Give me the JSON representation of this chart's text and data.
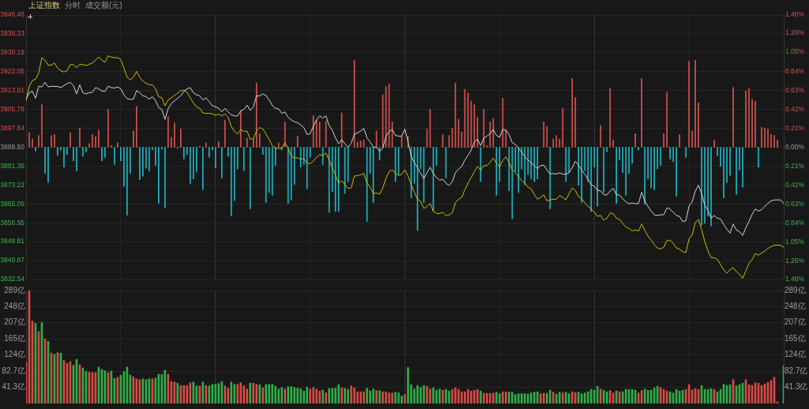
{
  "chart_data": [
    {
      "type": "line",
      "title": "上证指数",
      "subtitle": "分时",
      "annotations": [
        "成交额(元)"
      ],
      "categories": [
        null,
        null,
        null,
        null,
        null,
        null,
        null,
        null,
        null,
        null,
        null,
        null,
        null,
        null,
        null,
        null,
        null,
        null,
        null,
        null,
        null,
        null,
        null,
        null,
        null,
        null,
        null,
        null,
        null,
        null,
        null,
        null,
        null,
        null,
        null,
        null,
        null,
        null,
        null,
        null,
        null,
        null,
        null,
        null,
        null,
        null,
        null,
        null,
        null,
        null,
        null,
        null,
        null,
        null,
        null,
        null,
        null,
        null,
        null,
        null,
        null,
        null,
        null,
        null,
        null,
        null,
        null,
        null,
        null,
        null,
        null,
        null,
        null,
        null,
        null,
        null,
        null,
        null,
        null,
        null,
        null,
        null,
        null,
        null,
        null,
        null,
        null,
        null,
        null,
        null,
        null,
        null,
        null,
        null,
        null,
        null,
        null,
        null,
        null,
        null,
        null,
        null,
        null,
        null,
        null,
        null,
        null,
        null,
        null,
        null,
        null,
        null,
        null,
        null,
        null,
        null,
        null,
        null,
        null,
        null,
        null,
        null,
        null,
        null,
        null,
        null,
        null,
        null,
        null,
        null,
        null,
        null,
        null,
        null,
        null,
        null,
        null,
        null,
        null,
        null,
        null,
        null,
        null,
        null,
        null,
        null,
        null,
        null,
        null,
        null,
        null,
        null,
        null,
        null,
        null,
        null,
        null,
        null,
        null,
        null,
        null,
        null,
        null,
        null,
        null,
        null,
        null,
        null,
        null,
        null,
        null,
        null,
        null,
        null,
        null,
        null,
        null,
        null,
        null,
        null,
        null,
        null,
        null,
        null,
        null,
        null,
        null,
        null,
        null,
        null,
        null,
        null,
        null,
        null,
        null,
        null,
        null,
        null,
        null,
        null,
        null,
        null,
        null,
        null,
        null,
        null,
        null,
        null,
        null,
        null,
        null,
        null,
        null,
        null,
        null,
        null,
        null,
        null,
        null,
        null,
        null,
        null,
        null,
        null,
        null,
        null,
        null,
        null,
        null,
        null,
        null,
        null,
        null,
        null,
        null,
        null,
        null,
        null,
        null,
        null,
        null
      ],
      "series": [
        {
          "type": "bar",
          "axis": "y2",
          "values": [
            null,
            0.16,
            0.09,
            -0.04,
            0.13,
            0.47,
            -0.29,
            -0.39,
            0.13,
            0.14,
            -0.09,
            -0.03,
            -0.22,
            -0.08,
            0.16,
            -0.15,
            -0.26,
            0.21,
            -0.1,
            -0.05,
            0.04,
            0.14,
            0.12,
            0.19,
            -0.15,
            -0.11,
            0.42,
            0.02,
            -0.19,
            0.05,
            -0.15,
            -0.43,
            -0.75,
            -0.29,
            0.18,
            0.45,
            -0.36,
            -0.32,
            -0.23,
            -0.26,
            -0.03,
            -0.2,
            -0.62,
            -0.02,
            -0.67,
            0.34,
            0.11,
            0.27,
            -0.01,
            0.2,
            -0.13,
            -0.08,
            -0.4,
            -0.35,
            -0.27,
            0.01,
            -0.47,
            0.05,
            -0.11,
            -0.03,
            -0.23,
            0.06,
            -0.34,
            0.3,
            -0.1,
            -0.76,
            -0.59,
            -0.24,
            0.4,
            -0.26,
            0.1,
            -0.68,
            0.09,
            0.71,
            0.15,
            -0.08,
            -0.61,
            -0.5,
            -0.53,
            -0.2,
            0.05,
            -0.03,
            0.28,
            -0.62,
            -0.58,
            -0.41,
            0.12,
            -0.22,
            -0.19,
            -0.46,
            -0.11,
            0.35,
            0.3,
            0.28,
            -0.19,
            0.29,
            -0.72,
            -0.49,
            -0.71,
            -0.71,
            0.38,
            -0.51,
            -0.38,
            null,
            0.96,
            0.06,
            0.07,
            0.08,
            -0.82,
            -0.29,
            -0.61,
            0.18,
            -0.14,
            0.58,
            0.67,
            0.7,
            0.28,
            -0.38,
            -0.3,
            0.12,
            null,
            0.12,
            -0.56,
            -0.4,
            -0.92,
            -0.24,
            -0.61,
            0.2,
            0.42,
            -0.71,
            -0.2,
            null,
            0.14,
            -0.34,
            0.13,
            0.21,
            0.71,
            0.31,
            0.17,
            0.64,
            0.6,
            0.51,
            0.47,
            0.33,
            -0.38,
            0.42,
            0.02,
            0.28,
            0.32,
            -0.53,
            -0.38,
            0.54,
            0.19,
            -0.48,
            -0.79,
            -0.27,
            -0.5,
            -0.24,
            -0.41,
            -0.3,
            -0.35,
            -0.38,
            -0.35,
            null,
            0.28,
            0.23,
            -0.68,
            0.09,
            0.13,
            0.09,
            0.43,
            -0.38,
            -0.28,
            0.76,
            0.55,
            -0.42,
            -0.61,
            -0.26,
            -0.38,
            -0.71,
            -0.22,
            -0.65,
            0.24,
            -0.5,
            -0.05,
            0.65,
            0.08,
            -0.62,
            -0.14,
            -0.28,
            -0.53,
            -0.29,
            -0.18,
            0.15,
            -0.03,
            0.76,
            -0.63,
            -0.35,
            -0.45,
            -0.47,
            -0.24,
            -0.2,
            0.15,
            0.61,
            -0.13,
            -0.16,
            -0.54,
            0.14,
            null,
            -0.11,
            0.95,
            0.18,
            0.96,
            0.49,
            -0.86,
            -0.84,
            -0.76,
            -0.87,
            0.08,
            -0.09,
            -0.21,
            -0.56,
            -0.39,
            -0.31,
            0.66,
            -0.52,
            -0.25,
            -0.44,
            0.62,
            0.65,
            0.53,
            0.51,
            -0.22,
            0.22,
            0.21,
            0.2,
            0.14,
            0.13,
            0.08,
            null,
            null
          ],
          "colors": [
            null,
            "#d9534f",
            "#d9534f",
            "#1fb6c6",
            "#d9534f",
            "#d9534f",
            "#1fb6c6",
            "#1fb6c6",
            "#d9534f",
            "#d9534f",
            "#1fb6c6",
            "#1fb6c6",
            "#1fb6c6",
            "#1fb6c6",
            "#d9534f",
            "#1fb6c6",
            "#1fb6c6",
            "#d9534f",
            "#1fb6c6",
            "#1fb6c6",
            "#d9534f",
            "#d9534f",
            "#d9534f",
            "#d9534f",
            "#1fb6c6",
            "#1fb6c6",
            "#d9534f",
            "#d9534f",
            "#1fb6c6",
            "#d9534f",
            "#1fb6c6",
            "#1fb6c6",
            "#1fb6c6",
            "#1fb6c6",
            "#d9534f",
            "#d9534f",
            "#1fb6c6",
            "#1fb6c6",
            "#1fb6c6",
            "#1fb6c6",
            "#1fb6c6",
            "#1fb6c6",
            "#1fb6c6",
            "#1fb6c6",
            "#1fb6c6",
            "#d9534f",
            "#d9534f",
            "#d9534f",
            "#1fb6c6",
            "#d9534f",
            "#1fb6c6",
            "#1fb6c6",
            "#1fb6c6",
            "#1fb6c6",
            "#1fb6c6",
            "#d9534f",
            "#1fb6c6",
            "#d9534f",
            "#1fb6c6",
            "#1fb6c6",
            "#1fb6c6",
            "#d9534f",
            "#1fb6c6",
            "#d9534f",
            "#1fb6c6",
            "#1fb6c6",
            "#1fb6c6",
            "#1fb6c6",
            "#d9534f",
            "#1fb6c6",
            "#d9534f",
            "#1fb6c6",
            "#d9534f",
            "#d9534f",
            "#d9534f",
            "#1fb6c6",
            "#1fb6c6",
            "#1fb6c6",
            "#1fb6c6",
            "#1fb6c6",
            "#d9534f",
            "#1fb6c6",
            "#d9534f",
            "#1fb6c6",
            "#1fb6c6",
            "#1fb6c6",
            "#d9534f",
            "#1fb6c6",
            "#1fb6c6",
            "#1fb6c6",
            "#1fb6c6",
            "#d9534f",
            "#d9534f",
            "#d9534f",
            "#1fb6c6",
            "#d9534f",
            "#1fb6c6",
            "#1fb6c6",
            "#1fb6c6",
            "#1fb6c6",
            "#d9534f",
            "#1fb6c6",
            "#1fb6c6",
            null,
            "#d9534f",
            "#d9534f",
            "#d9534f",
            "#d9534f",
            "#1fb6c6",
            "#1fb6c6",
            "#1fb6c6",
            "#d9534f",
            "#1fb6c6",
            "#d9534f",
            "#d9534f",
            "#d9534f",
            "#d9534f",
            "#1fb6c6",
            "#1fb6c6",
            "#d9534f",
            null,
            "#d9534f",
            "#1fb6c6",
            "#1fb6c6",
            "#1fb6c6",
            "#1fb6c6",
            "#1fb6c6",
            "#d9534f",
            "#d9534f",
            "#1fb6c6",
            "#1fb6c6",
            null,
            "#d9534f",
            "#1fb6c6",
            "#d9534f",
            "#d9534f",
            "#d9534f",
            "#d9534f",
            "#d9534f",
            "#d9534f",
            "#d9534f",
            "#d9534f",
            "#d9534f",
            "#d9534f",
            "#1fb6c6",
            "#d9534f",
            "#d9534f",
            "#d9534f",
            "#d9534f",
            "#1fb6c6",
            "#1fb6c6",
            "#d9534f",
            "#d9534f",
            "#1fb6c6",
            "#1fb6c6",
            "#1fb6c6",
            "#1fb6c6",
            "#1fb6c6",
            "#1fb6c6",
            "#1fb6c6",
            "#1fb6c6",
            "#1fb6c6",
            "#1fb6c6",
            null,
            "#d9534f",
            "#d9534f",
            "#1fb6c6",
            "#d9534f",
            "#d9534f",
            "#d9534f",
            "#d9534f",
            "#1fb6c6",
            "#1fb6c6",
            "#d9534f",
            "#d9534f",
            "#1fb6c6",
            "#1fb6c6",
            "#1fb6c6",
            "#1fb6c6",
            "#1fb6c6",
            "#1fb6c6",
            "#1fb6c6",
            "#d9534f",
            "#1fb6c6",
            "#1fb6c6",
            "#d9534f",
            "#d9534f",
            "#1fb6c6",
            "#1fb6c6",
            "#1fb6c6",
            "#1fb6c6",
            "#1fb6c6",
            "#1fb6c6",
            "#d9534f",
            "#1fb6c6",
            "#d9534f",
            "#1fb6c6",
            "#1fb6c6",
            "#1fb6c6",
            "#1fb6c6",
            "#1fb6c6",
            "#1fb6c6",
            "#d9534f",
            "#d9534f",
            "#1fb6c6",
            "#1fb6c6",
            "#1fb6c6",
            "#d9534f",
            null,
            "#1fb6c6",
            "#d9534f",
            "#d9534f",
            "#d9534f",
            "#d9534f",
            "#1fb6c6",
            "#1fb6c6",
            "#1fb6c6",
            "#1fb6c6",
            "#d9534f",
            "#1fb6c6",
            "#1fb6c6",
            "#1fb6c6",
            "#1fb6c6",
            "#1fb6c6",
            "#d9534f",
            "#1fb6c6",
            "#1fb6c6",
            "#1fb6c6",
            "#d9534f",
            "#d9534f",
            "#d9534f",
            "#d9534f",
            "#1fb6c6",
            "#d9534f",
            "#d9534f",
            "#d9534f",
            "#d9534f",
            "#d9534f",
            "#d9534f",
            null,
            null
          ]
        },
        {
          "color": "#d4d4d4",
          "values": [
            3910.2,
            3913.0,
            3913.6,
            3910.6,
            3915.8,
            3915.5,
            3917.5,
            3915.5,
            3915.8,
            3915.7,
            3915.7,
            3915.2,
            3916.1,
            3916.9,
            3917.5,
            3916.1,
            3912.5,
            3916.4,
            3913.0,
            3912.5,
            3913.0,
            3913.2,
            3915.2,
            3914.7,
            3913.8,
            3913.6,
            3915.8,
            3915.2,
            3915.0,
            3915.5,
            3914.7,
            3912.1,
            3910.5,
            3910.1,
            3910.2,
            3913.9,
            3913.0,
            3911.7,
            3911.3,
            3910.2,
            3911.3,
            3909.7,
            3906.6,
            3905.8,
            3901.5,
            3906.1,
            3908.3,
            3909.5,
            3910.6,
            3911.7,
            3913.6,
            3914.7,
            3915.2,
            3913.0,
            3912.1,
            3911.7,
            3909.9,
            3910.8,
            3909.1,
            3907.4,
            3906.9,
            3906.3,
            3904.7,
            3906.3,
            3904.7,
            3903.5,
            3903.0,
            3903.0,
            3905.2,
            3905.8,
            3907.7,
            3905.4,
            3906.9,
            3911.7,
            3911.6,
            3912.5,
            3911.8,
            3910.0,
            3907.5,
            3906.3,
            3906.0,
            3904.1,
            3904.7,
            3902.4,
            3901.3,
            3900.5,
            3900.1,
            3899.1,
            3898.0,
            3895.0,
            3895.4,
            3898.5,
            3901.3,
            3903.0,
            3902.1,
            3903.0,
            3898.8,
            3896.9,
            3893.5,
            3891.0,
            3892.7,
            3891.0,
            3889.4,
            3891.3,
            3895.2,
            3895.7,
            3896.5,
            3897.6,
            3893.5,
            3891.8,
            3889.6,
            3889.4,
            3887.7,
            3889.1,
            3894.1,
            3896.3,
            3897.1,
            3894.6,
            3894.3,
            3894.3,
            3897.4,
            3891.8,
            3885.7,
            3882.9,
            3880.7,
            3878.2,
            3876.0,
            3878.5,
            3880.9,
            3878.2,
            3876.5,
            3875.3,
            3875.7,
            3874.0,
            3873.1,
            3874.6,
            3878.5,
            3880.1,
            3881.2,
            3884.0,
            3886.0,
            3888.3,
            3891.8,
            3893.0,
            3890.2,
            3893.5,
            3894.3,
            3895.4,
            3897.2,
            3894.6,
            3893.8,
            3897.2,
            3896.9,
            3895.0,
            3891.5,
            3890.7,
            3889.1,
            3887.4,
            3885.4,
            3884.0,
            3882.9,
            3881.4,
            3880.4,
            3881.6,
            3881.8,
            3879.8,
            3877.9,
            3878.2,
            3877.9,
            3878.5,
            3877.9,
            3877.9,
            3878.5,
            3880.7,
            3883.5,
            3881.8,
            3879.6,
            3877.9,
            3875.7,
            3873.4,
            3872.7,
            3870.9,
            3870.7,
            3869.0,
            3869.0,
            3870.7,
            3871.8,
            3869.0,
            3868.9,
            3867.3,
            3866.0,
            3865.1,
            3865.5,
            3865.1,
            3865.3,
            3870.1,
            3866.2,
            3864.0,
            3862.0,
            3860.4,
            3860.1,
            3860.4,
            3860.4,
            3863.4,
            3862.9,
            3861.5,
            3860.1,
            3859.7,
            3857.5,
            3857.8,
            3864.2,
            3866.0,
            3870.7,
            3873.1,
            3869.5,
            3864.5,
            3862.3,
            3858.9,
            3860.1,
            3858.9,
            3858.6,
            3856.2,
            3854.2,
            3852.5,
            3856.4,
            3853.9,
            3853.1,
            3851.5,
            3854.8,
            3857.5,
            3860.6,
            3862.9,
            3862.0,
            3862.6,
            3864.0,
            3865.3,
            3866.4,
            3866.8,
            3866.8,
            3866.8,
            3865.3
          ]
        },
        {
          "color": "#cdbd06",
          "values": [
            3909.7,
            3915.8,
            3918.3,
            3918.8,
            3921.4,
            3928.1,
            3927.0,
            3924.9,
            3924.9,
            3925.8,
            3923.6,
            3922.5,
            3921.9,
            3922.5,
            3925.1,
            3925.1,
            3923.8,
            3925.3,
            3925.1,
            3924.7,
            3925.3,
            3925.8,
            3927.0,
            3928.4,
            3927.0,
            3926.2,
            3928.9,
            3928.4,
            3928.1,
            3928.1,
            3927.3,
            3923.6,
            3919.7,
            3918.6,
            3919.7,
            3922.2,
            3919.7,
            3918.0,
            3917.1,
            3916.4,
            3916.4,
            3914.7,
            3911.3,
            3910.8,
            3907.4,
            3909.9,
            3910.8,
            3911.9,
            3912.8,
            3913.9,
            3914.1,
            3913.2,
            3910.8,
            3908.6,
            3906.9,
            3906.3,
            3904.3,
            3904.1,
            3904.1,
            3903.9,
            3903.3,
            3903.8,
            3903.0,
            3903.9,
            3902.4,
            3898.5,
            3896.3,
            3895.2,
            3897.1,
            3896.3,
            3896.5,
            3893.0,
            3893.2,
            3896.5,
            3898.0,
            3897.4,
            3895.2,
            3892.8,
            3890.2,
            3889.1,
            3889.0,
            3889.1,
            3891.5,
            3889.1,
            3885.7,
            3884.9,
            3884.9,
            3884.4,
            3884.6,
            3882.7,
            3882.4,
            3883.5,
            3885.2,
            3886.3,
            3886.0,
            3887.0,
            3884.0,
            3880.7,
            3877.6,
            3874.0,
            3875.1,
            3873.4,
            3871.8,
            3872.0,
            3877.1,
            3877.3,
            3877.6,
            3878.2,
            3874.0,
            3872.3,
            3869.5,
            3869.8,
            3869.3,
            3872.0,
            3876.2,
            3879.0,
            3879.8,
            3878.2,
            3877.3,
            3877.9,
            3879.8,
            3877.1,
            3873.4,
            3870.1,
            3867.1,
            3866.2,
            3863.1,
            3864.0,
            3865.3,
            3862.0,
            3861.0,
            3860.9,
            3861.5,
            3860.0,
            3860.4,
            3861.2,
            3865.6,
            3867.1,
            3867.9,
            3871.2,
            3874.0,
            3876.5,
            3879.0,
            3881.2,
            3879.6,
            3881.6,
            3881.6,
            3883.1,
            3884.8,
            3882.7,
            3881.0,
            3883.8,
            3885.4,
            3882.9,
            3879.8,
            3878.5,
            3876.8,
            3875.1,
            3874.0,
            3872.3,
            3871.6,
            3869.1,
            3867.1,
            3867.9,
            3869.0,
            3866.4,
            3866.8,
            3867.1,
            3867.1,
            3868.7,
            3867.9,
            3866.8,
            3869.5,
            3872.0,
            3870.9,
            3868.2,
            3867.3,
            3865.6,
            3864.0,
            3862.9,
            3861.5,
            3859.7,
            3860.1,
            3858.1,
            3858.9,
            3861.2,
            3860.9,
            3858.9,
            3858.4,
            3856.7,
            3855.1,
            3854.5,
            3853.4,
            3853.9,
            3853.4,
            3856.4,
            3853.7,
            3851.2,
            3849.5,
            3847.5,
            3846.1,
            3845.6,
            3846.4,
            3849.3,
            3849.5,
            3848.1,
            3846.1,
            3845.6,
            3844.5,
            3844.1,
            3850.0,
            3851.7,
            3857.1,
            3858.4,
            3853.9,
            3848.9,
            3844.8,
            3841.9,
            3841.9,
            3841.1,
            3838.9,
            3836.7,
            3835.2,
            3836.7,
            3837.6,
            3835.9,
            3834.8,
            3833.0,
            3836.3,
            3839.4,
            3841.1,
            3843.7,
            3843.0,
            3843.9,
            3844.8,
            3845.9,
            3846.7,
            3847.3,
            3847.3,
            3847.3,
            3846.4
          ]
        }
      ],
      "ylim": [
        3832.54,
        3946.46
      ],
      "yticks": [
        3832.54,
        3840.67,
        3848.81,
        3856.95,
        3865.09,
        3873.22,
        3881.36,
        {
          "value": 3889.5,
          "label": "3889.50"
        },
        3897.64,
        3905.78,
        3913.91,
        3922.05,
        3930.19,
        3938.33,
        3946.46
      ],
      "y2lim": [
        -1.46,
        1.46
      ],
      "y2ticks": [
        {
          "value": -1.46,
          "label": "1.46%"
        },
        {
          "value": -1.26,
          "label": "1.26%"
        },
        {
          "value": -1.05,
          "label": "1.05%"
        },
        {
          "value": -0.84,
          "label": "0.84%"
        },
        {
          "value": -0.63,
          "label": "0.63%"
        },
        {
          "value": -0.42,
          "label": "0.42%"
        },
        {
          "value": -0.21,
          "label": "0.21%"
        },
        {
          "value": 0,
          "label": "0.00%"
        },
        {
          "value": 0.21,
          "label": "0.21%"
        },
        {
          "value": 0.42,
          "label": "0.42%"
        },
        {
          "value": 0.63,
          "label": "0.63%"
        },
        {
          "value": 0.84,
          "label": "0.84%"
        },
        {
          "value": 1.05,
          "label": "1.05%"
        },
        {
          "value": 1.26,
          "label": "1.26%"
        },
        {
          "value": 1.46,
          "label": "1.46%"
        }
      ],
      "grid": true
    },
    {
      "type": "bar",
      "categories": [
        null,
        null,
        null,
        null,
        null,
        null,
        null,
        null,
        null,
        null,
        null,
        null,
        null,
        null,
        null,
        null,
        null,
        null,
        null,
        null,
        null,
        null,
        null,
        null,
        null,
        null,
        null,
        null,
        null,
        null,
        null,
        null,
        null,
        null,
        null,
        null,
        null,
        null,
        null,
        null,
        null,
        null,
        null,
        null,
        null,
        null,
        null,
        null,
        null,
        null,
        null,
        null,
        null,
        null,
        null,
        null,
        null,
        null,
        null,
        null,
        null,
        null,
        null,
        null,
        null,
        null,
        null,
        null,
        null,
        null,
        null,
        null,
        null,
        null,
        null,
        null,
        null,
        null,
        null,
        null,
        null,
        null,
        null,
        null,
        null,
        null,
        null,
        null,
        null,
        null,
        null,
        null,
        null,
        null,
        null,
        null,
        null,
        null,
        null,
        null,
        null,
        null,
        null,
        null,
        null,
        null,
        null,
        null,
        null,
        null,
        null,
        null,
        null,
        null,
        null,
        null,
        null,
        null,
        null,
        null,
        null,
        null,
        null,
        null,
        null,
        null,
        null,
        null,
        null,
        null,
        null,
        null,
        null,
        null,
        null,
        null,
        null,
        null,
        null,
        null,
        null,
        null,
        null,
        null,
        null,
        null,
        null,
        null,
        null,
        null,
        null,
        null,
        null,
        null,
        null,
        null,
        null,
        null,
        null,
        null,
        null,
        null,
        null,
        null,
        null,
        null,
        null,
        null,
        null,
        null,
        null,
        null,
        null,
        null,
        null,
        null,
        null,
        null,
        null,
        null,
        null,
        null,
        null,
        null,
        null,
        null,
        null,
        null,
        null,
        null,
        null,
        null,
        null,
        null,
        null,
        null,
        null,
        null,
        null,
        null,
        null,
        null,
        null,
        null,
        null,
        null,
        null,
        null,
        null,
        null,
        null,
        null,
        null,
        null,
        null,
        null,
        null,
        null,
        null,
        null,
        null,
        null,
        null,
        null,
        null,
        null,
        null,
        null,
        null,
        null,
        null,
        null,
        null,
        null,
        null,
        null,
        null,
        null,
        null,
        null,
        null
      ],
      "values": [
        106,
        289,
        211,
        205,
        184,
        207,
        165,
        159,
        129,
        126,
        130,
        129,
        110,
        103,
        107,
        98,
        113,
        99,
        91,
        82,
        80,
        79,
        79,
        93,
        87,
        84,
        79,
        83,
        64,
        67,
        72,
        82,
        93,
        73,
        68,
        63,
        61,
        63,
        61,
        63,
        63,
        65,
        75,
        74,
        85,
        75,
        56,
        55,
        52,
        46,
        46,
        46,
        53,
        55,
        45,
        45,
        55,
        46,
        45,
        49,
        49,
        51,
        56,
        45,
        39,
        55,
        49,
        49,
        53,
        45,
        37,
        52,
        52,
        49,
        48,
        40,
        48,
        49,
        49,
        44,
        37,
        41,
        37,
        43,
        43,
        41,
        39,
        38,
        32,
        42,
        37,
        41,
        37,
        32,
        34,
        27,
        38,
        39,
        39,
        48,
        40,
        39,
        36,
        45,
        40,
        30,
        30,
        30,
        39,
        32,
        37,
        33,
        33,
        30,
        30,
        27,
        27,
        29,
        27,
        19,
        23,
        92,
        48,
        37,
        46,
        41,
        46,
        44,
        37,
        40,
        34,
        37,
        34,
        36,
        32,
        36,
        40,
        36,
        30,
        30,
        36,
        32,
        34,
        36,
        32,
        26,
        26,
        26,
        27,
        29,
        25,
        30,
        30,
        29,
        29,
        23,
        25,
        25,
        25,
        24,
        27,
        29,
        30,
        25,
        26,
        26,
        34,
        29,
        24,
        29,
        27,
        29,
        25,
        30,
        28,
        29,
        25,
        27,
        30,
        36,
        34,
        44,
        37,
        34,
        30,
        33,
        27,
        32,
        30,
        30,
        36,
        36,
        36,
        34,
        27,
        33,
        37,
        34,
        34,
        40,
        44,
        41,
        36,
        32,
        30,
        27,
        36,
        32,
        34,
        36,
        48,
        35,
        38,
        36,
        46,
        36,
        36,
        38,
        36,
        30,
        36,
        49,
        46,
        48,
        61,
        45,
        48,
        52,
        61,
        48,
        46,
        53,
        52,
        46,
        50,
        54,
        59,
        67,
        4,
        null,
        97
      ],
      "colors": [
        "#d84a45",
        "#d84a45",
        "#d84a45",
        "#2fae48",
        "#d84a45",
        "#2fae48",
        "#d84a45",
        "#2fae48",
        "#d84a45",
        "#2fae48",
        "#d84a45",
        "#2fae48",
        "#d84a45",
        "#d84a45",
        "#d84a45",
        "#2fae48",
        "#2fae48",
        "#d84a45",
        "#2fae48",
        "#2fae48",
        "#d84a45",
        "#d84a45",
        "#d84a45",
        "#2fae48",
        "#2fae48",
        "#2fae48",
        "#d84a45",
        "#2fae48",
        "#2fae48",
        "#d84a45",
        "#2fae48",
        "#2fae48",
        "#2fae48",
        "#2fae48",
        "#d84a45",
        "#d84a45",
        "#d84a45",
        "#2fae48",
        "#2fae48",
        "#2fae48",
        "#d84a45",
        "#2fae48",
        "#2fae48",
        "#2fae48",
        "#2fae48",
        "#d84a45",
        "#d84a45",
        "#d84a45",
        "#2fae48",
        "#d84a45",
        "#d84a45",
        "#d84a45",
        "#d84a45",
        "#2fae48",
        "#2fae48",
        "#d84a45",
        "#2fae48",
        "#d84a45",
        "#2fae48",
        "#2fae48",
        "#2fae48",
        "#2fae48",
        "#2fae48",
        "#d84a45",
        "#d84a45",
        "#2fae48",
        "#2fae48",
        "#d84a45",
        "#d84a45",
        "#d84a45",
        "#d84a45",
        "#2fae48",
        "#d84a45",
        "#d84a45",
        "#2fae48",
        "#d84a45",
        "#2fae48",
        "#2fae48",
        "#2fae48",
        "#2fae48",
        "#2fae48",
        "#2fae48",
        "#d84a45",
        "#2fae48",
        "#2fae48",
        "#2fae48",
        "#2fae48",
        "#2fae48",
        "#2fae48",
        "#2fae48",
        "#d84a45",
        "#d84a45",
        "#d84a45",
        "#d84a45",
        "#2fae48",
        "#d84a45",
        "#2fae48",
        "#2fae48",
        "#2fae48",
        "#2fae48",
        "#d84a45",
        "#2fae48",
        "#2fae48",
        "#d84a45",
        "#d84a45",
        "#d84a45",
        "#d84a45",
        "#d84a45",
        "#2fae48",
        "#2fae48",
        "#2fae48",
        "#d84a45",
        "#2fae48",
        "#d84a45",
        "#d84a45",
        "#d84a45",
        "#d84a45",
        "#2fae48",
        "#2fae48",
        "#2fae48",
        "#d84a45",
        "#2fae48",
        "#2fae48",
        "#2fae48",
        "#2fae48",
        "#2fae48",
        "#2fae48",
        "#d84a45",
        "#d84a45",
        "#2fae48",
        "#2fae48",
        "#2fae48",
        "#d84a45",
        "#2fae48",
        "#2fae48",
        "#d84a45",
        "#d84a45",
        "#d84a45",
        "#d84a45",
        "#d84a45",
        "#d84a45",
        "#d84a45",
        "#d84a45",
        "#d84a45",
        "#2fae48",
        "#d84a45",
        "#d84a45",
        "#d84a45",
        "#d84a45",
        "#2fae48",
        "#2fae48",
        "#d84a45",
        "#d84a45",
        "#2fae48",
        "#2fae48",
        "#2fae48",
        "#2fae48",
        "#2fae48",
        "#2fae48",
        "#2fae48",
        "#2fae48",
        "#2fae48",
        "#2fae48",
        "#d84a45",
        "#d84a45",
        "#2fae48",
        "#2fae48",
        "#d84a45",
        "#2fae48",
        "#2fae48",
        "#d84a45",
        "#2fae48",
        "#2fae48",
        "#d84a45",
        "#d84a45",
        "#2fae48",
        "#2fae48",
        "#2fae48",
        "#2fae48",
        "#2fae48",
        "#2fae48",
        "#2fae48",
        "#d84a45",
        "#2fae48",
        "#2fae48",
        "#d84a45",
        "#d84a45",
        "#2fae48",
        "#d84a45",
        "#2fae48",
        "#2fae48",
        "#2fae48",
        "#2fae48",
        "#2fae48",
        "#d84a45",
        "#d84a45",
        "#2fae48",
        "#2fae48",
        "#2fae48",
        "#2fae48",
        "#2fae48",
        "#d84a45",
        "#d84a45",
        "#d84a45",
        "#2fae48",
        "#2fae48",
        "#2fae48",
        "#2fae48",
        "#2fae48",
        "#d84a45",
        "#d84a45",
        "#d84a45",
        "#d84a45",
        "#d84a45",
        "#2fae48",
        "#2fae48",
        "#2fae48",
        "#2fae48",
        "#d84a45",
        "#2fae48",
        "#2fae48",
        "#2fae48",
        "#2fae48",
        "#2fae48",
        "#d84a45",
        "#2fae48",
        "#2fae48",
        "#2fae48",
        "#d84a45",
        "#d84a45",
        "#d84a45",
        "#d84a45",
        "#d84a45",
        "#d84a45",
        "#d84a45",
        "#d84a45",
        "#d84a45",
        "#d84a45",
        "#d84a45",
        null,
        "#2fae48"
      ],
      "ylim": [
        0,
        289
      ],
      "yticks": [
        {
          "value": 41.3,
          "label": "41.3亿"
        },
        {
          "value": 82.7,
          "label": "82.7亿"
        },
        {
          "value": 124,
          "label": "124亿"
        },
        {
          "value": 165,
          "label": "165亿"
        },
        {
          "value": 207,
          "label": "207亿"
        },
        {
          "value": 248,
          "label": "248亿"
        },
        {
          "value": 289,
          "label": "289亿"
        }
      ],
      "y2lim": [
        0,
        289
      ],
      "y2ticks": [
        {
          "value": 41.3,
          "label": "41.3亿"
        },
        {
          "value": 82.7,
          "label": "82.7亿"
        },
        {
          "value": 124,
          "label": "124亿"
        },
        {
          "value": 165,
          "label": "165亿"
        },
        {
          "value": 207,
          "label": "207亿"
        },
        {
          "value": 248,
          "label": "248亿"
        },
        {
          "value": 289,
          "label": "289亿"
        }
      ],
      "grid": true
    }
  ]
}
